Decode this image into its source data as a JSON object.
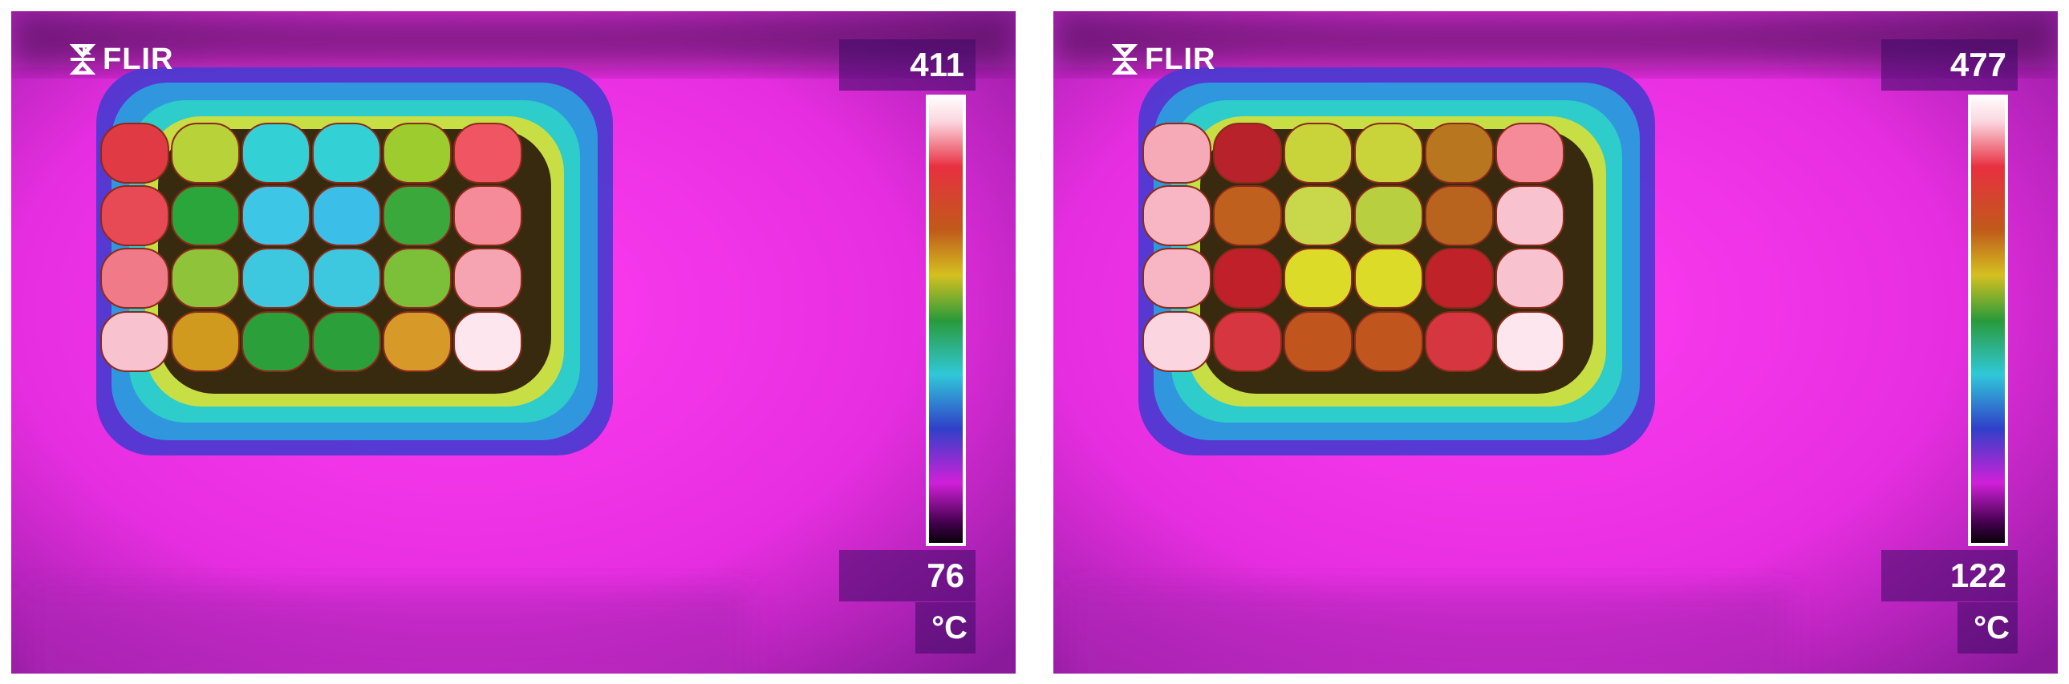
{
  "panels": [
    {
      "id": "left",
      "logo_text": "FLIR",
      "scale_max": "411",
      "scale_min": "76",
      "unit": "°C",
      "cells": [
        [
          "#e03a45",
          "#b8d23a",
          "#33d0d6",
          "#33d0d6",
          "#9ccc2e",
          "#f05563"
        ],
        [
          "#e84a55",
          "#2aa63a",
          "#3ec6e6",
          "#3bbfe8",
          "#3aa83a",
          "#f58a98"
        ],
        [
          "#f07a88",
          "#8fc43a",
          "#3ec8e0",
          "#3ec8e0",
          "#7cbf38",
          "#f7a4b2"
        ],
        [
          "#f9c2cf",
          "#cf9a1e",
          "#2a9f3a",
          "#2a9f3a",
          "#d79a28",
          "#fde6ee"
        ]
      ]
    },
    {
      "id": "right",
      "logo_text": "FLIR",
      "scale_max": "477",
      "scale_min": "122",
      "unit": "°C",
      "cells": [
        [
          "#f6aab8",
          "#b8222a",
          "#c8d43a",
          "#c8d43a",
          "#b8761e",
          "#f58a98"
        ],
        [
          "#f8b6c4",
          "#c0601e",
          "#c8d84a",
          "#b8d040",
          "#b8641e",
          "#f9c2cf"
        ],
        [
          "#f8b6c4",
          "#c0202a",
          "#dcdc28",
          "#dcdc28",
          "#c0222a",
          "#f9c2cf"
        ],
        [
          "#fbd6e0",
          "#d63640",
          "#c0561e",
          "#c0561e",
          "#d63640",
          "#fde6ee"
        ]
      ]
    }
  ]
}
